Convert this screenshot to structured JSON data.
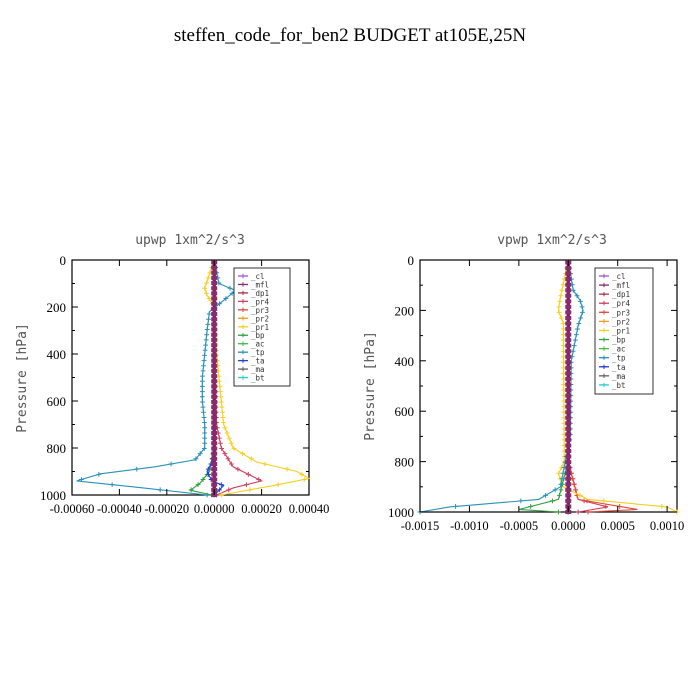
{
  "figure": {
    "title": "steffen_code_for_ben2  BUDGET at105E,25N"
  },
  "legend_entries": [
    {
      "name": "_cl",
      "color": "#9b59d0"
    },
    {
      "name": "_mfl",
      "color": "#8a2b6d"
    },
    {
      "name": "_dp1",
      "color": "#b0304a"
    },
    {
      "name": "_pr4",
      "color": "#d04060"
    },
    {
      "name": "_pr3",
      "color": "#e04a3a"
    },
    {
      "name": "_pr2",
      "color": "#e8a020"
    },
    {
      "name": "_pr1",
      "color": "#f5d020"
    },
    {
      "name": "_bp",
      "color": "#30a040"
    },
    {
      "name": "_ac",
      "color": "#40c040"
    },
    {
      "name": "_tp",
      "color": "#2a90b8"
    },
    {
      "name": "_ta",
      "color": "#2040d0"
    },
    {
      "name": "_ma",
      "color": "#606060"
    },
    {
      "name": "_bt",
      "color": "#20d0d0"
    }
  ],
  "chart_data": [
    {
      "type": "line",
      "title": "upwp   1xm^2/s^3",
      "xlabel": "",
      "ylabel": "Pressure [hPa]",
      "xlim": [
        -0.0006,
        0.0004
      ],
      "ylim": [
        1000,
        0
      ],
      "xticks": [
        -0.0006,
        -0.0004,
        -0.0002,
        0.0,
        0.0002,
        0.0004
      ],
      "xtick_labels": [
        "-0.00060",
        "-0.00040",
        "-0.00020",
        "0.00000",
        "0.00020",
        "0.00040"
      ],
      "yticks": [
        0,
        200,
        400,
        600,
        800,
        1000
      ],
      "ytick_labels": [
        "0",
        "200",
        "400",
        "600",
        "800",
        "1000"
      ],
      "legend_position": "top-right",
      "series": [
        {
          "name": "_cl",
          "color": "#9b59d0",
          "y": [
            0,
            100,
            200,
            400,
            600,
            800,
            1000
          ],
          "x": [
            0,
            0,
            0,
            0,
            0,
            0,
            0
          ]
        },
        {
          "name": "_mfl",
          "color": "#8a2b6d",
          "y": [
            0,
            100,
            200,
            400,
            600,
            800,
            1000
          ],
          "x": [
            0,
            0,
            0,
            0,
            0,
            0,
            0
          ]
        },
        {
          "name": "_dp1",
          "color": "#b0304a",
          "y": [
            0,
            100,
            200,
            400,
            600,
            800,
            1000
          ],
          "x": [
            0,
            0,
            0,
            0,
            0,
            0,
            0
          ]
        },
        {
          "name": "_pr4",
          "color": "#d04060",
          "y": [
            0,
            400,
            700,
            800,
            880,
            940,
            970,
            1000
          ],
          "x": [
            0,
            0,
            1e-05,
            3e-05,
            8e-05,
            0.0002,
            8e-05,
            1e-05
          ]
        },
        {
          "name": "_pr3",
          "color": "#e04a3a",
          "y": [
            0,
            600,
            800,
            1000
          ],
          "x": [
            0,
            0,
            0,
            0
          ]
        },
        {
          "name": "_pr2",
          "color": "#e8a020",
          "y": [
            0,
            600,
            800,
            1000
          ],
          "x": [
            0,
            0,
            0,
            0
          ]
        },
        {
          "name": "_pr1",
          "color": "#f5d020",
          "y": [
            0,
            120,
            150,
            200,
            400,
            700,
            800,
            860,
            900,
            930,
            960,
            1000
          ],
          "x": [
            0,
            -4e-05,
            -3e-05,
            0,
            1e-05,
            4e-05,
            8e-05,
            0.00018,
            0.00035,
            0.0004,
            0.00025,
            3e-05
          ]
        },
        {
          "name": "_bp",
          "color": "#30a040",
          "y": [
            0,
            800,
            900,
            950,
            980,
            1000
          ],
          "x": [
            0,
            0,
            -2e-05,
            -6e-05,
            -0.0001,
            -1e-05
          ]
        },
        {
          "name": "_ac",
          "color": "#40c040",
          "y": [
            0,
            800,
            950,
            1000
          ],
          "x": [
            0,
            0,
            0,
            0
          ]
        },
        {
          "name": "_tp",
          "color": "#2a90b8",
          "y": [
            0,
            100,
            130,
            180,
            220,
            300,
            400,
            500,
            600,
            700,
            800,
            850,
            880,
            910,
            940,
            970,
            1000
          ],
          "x": [
            0,
            2e-05,
            9e-05,
            3e-05,
            -2e-05,
            -3e-05,
            -4e-05,
            -5e-05,
            -5e-05,
            -4e-05,
            -4e-05,
            -8e-05,
            -0.00025,
            -0.00048,
            -0.00058,
            -0.0003,
            -3e-05
          ]
        },
        {
          "name": "_ta",
          "color": "#2040d0",
          "y": [
            0,
            800,
            860,
            900,
            940,
            960,
            980,
            1000
          ],
          "x": [
            0,
            0,
            -1e-05,
            -3e-05,
            -1e-05,
            4e-05,
            2e-05,
            0
          ]
        },
        {
          "name": "_ma",
          "color": "#606060",
          "y": [
            0,
            800,
            1000
          ],
          "x": [
            0,
            0,
            0
          ]
        },
        {
          "name": "_bt",
          "color": "#20d0d0",
          "y": [
            0,
            800,
            1000
          ],
          "x": [
            0,
            0,
            0
          ]
        }
      ]
    },
    {
      "type": "line",
      "title": "vpwp   1xm^2/s^3",
      "xlabel": "",
      "ylabel": "Pressure [hPa]",
      "xlim": [
        -0.0015,
        0.0011
      ],
      "ylim": [
        1000,
        0
      ],
      "xticks": [
        -0.0015,
        -0.001,
        -0.0005,
        0.0,
        0.0005,
        0.001
      ],
      "xtick_labels": [
        "-0.0015",
        "-0.0010",
        "-0.0005",
        "0.0000",
        "0.0005",
        "0.0010"
      ],
      "yticks": [
        0,
        200,
        400,
        600,
        800,
        1000
      ],
      "ytick_labels": [
        "0",
        "200",
        "400",
        "600",
        "800",
        "1000"
      ],
      "legend_position": "top-right",
      "series": [
        {
          "name": "_cl",
          "color": "#9b59d0",
          "y": [
            0,
            200,
            400,
            600,
            800,
            1000
          ],
          "x": [
            0,
            0,
            0,
            0,
            0,
            0
          ]
        },
        {
          "name": "_mfl",
          "color": "#8a2b6d",
          "y": [
            0,
            200,
            400,
            600,
            800,
            1000
          ],
          "x": [
            0,
            0,
            0,
            0,
            0,
            0
          ]
        },
        {
          "name": "_dp1",
          "color": "#b0304a",
          "y": [
            0,
            200,
            400,
            600,
            800,
            1000
          ],
          "x": [
            0,
            0,
            0,
            0,
            0,
            0
          ]
        },
        {
          "name": "_pr4",
          "color": "#d04060",
          "y": [
            0,
            800,
            950,
            980,
            1000
          ],
          "x": [
            0,
            0,
            0.0001,
            0.0004,
            0.0001
          ]
        },
        {
          "name": "_pr3",
          "color": "#e04a3a",
          "y": [
            0,
            800,
            950,
            990,
            1000
          ],
          "x": [
            0,
            0,
            0.0001,
            0.0007,
            0.0002
          ]
        },
        {
          "name": "_pr2",
          "color": "#e8a020",
          "y": [
            0,
            800,
            1000
          ],
          "x": [
            0,
            0,
            0
          ]
        },
        {
          "name": "_pr1",
          "color": "#f5d020",
          "y": [
            0,
            150,
            200,
            250,
            800,
            850,
            900,
            950,
            980,
            1000
          ],
          "x": [
            0,
            -8e-05,
            -0.0001,
            -5e-05,
            -4e-05,
            -0.0001,
            -5e-05,
            0.0002,
            0.001,
            0.0011
          ]
        },
        {
          "name": "_bp",
          "color": "#30a040",
          "y": [
            0,
            800,
            950,
            990,
            1000
          ],
          "x": [
            0,
            0,
            -0.0001,
            -0.0005,
            -0.0001
          ]
        },
        {
          "name": "_ac",
          "color": "#40c040",
          "y": [
            0,
            800,
            1000
          ],
          "x": [
            0,
            0,
            0
          ]
        },
        {
          "name": "_tp",
          "color": "#2a90b8",
          "y": [
            0,
            120,
            160,
            200,
            260,
            400,
            700,
            900,
            950,
            980,
            1000
          ],
          "x": [
            0,
            5e-05,
            0.00012,
            0.00015,
            0.0001,
            3e-05,
            2e-05,
            -8e-05,
            -0.0003,
            -0.0012,
            -0.0015
          ]
        },
        {
          "name": "_ta",
          "color": "#2040d0",
          "y": [
            0,
            800,
            1000
          ],
          "x": [
            0,
            0,
            0
          ]
        },
        {
          "name": "_ma",
          "color": "#606060",
          "y": [
            0,
            800,
            1000
          ],
          "x": [
            0,
            0,
            0
          ]
        },
        {
          "name": "_bt",
          "color": "#20d0d0",
          "y": [
            0,
            800,
            1000
          ],
          "x": [
            0,
            0,
            0
          ]
        }
      ]
    }
  ]
}
